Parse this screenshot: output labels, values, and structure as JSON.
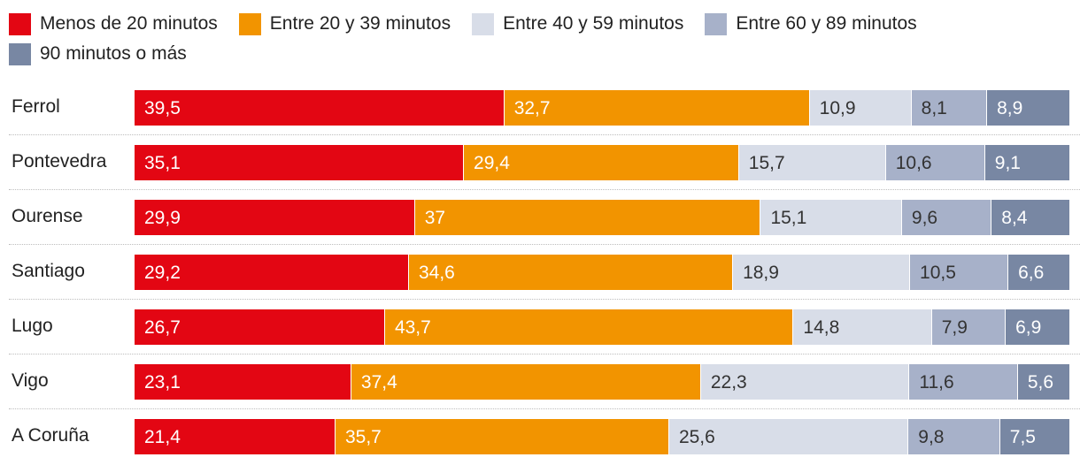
{
  "chart_data": {
    "type": "bar",
    "orientation": "horizontal",
    "stacked": true,
    "legend_position": "top",
    "categories": [
      "Ferrol",
      "Pontevedra",
      "Ourense",
      "Santiago",
      "Lugo",
      "Vigo",
      "A Coruña"
    ],
    "series": [
      {
        "name": "Menos de 20 minutos",
        "color": "#e30613",
        "label_color": "#ffffff",
        "values": [
          "39,5",
          "35,1",
          "29,9",
          "29,2",
          "26,7",
          "23,1",
          "21,4"
        ]
      },
      {
        "name": "Entre 20 y 39 minutos",
        "color": "#f29400",
        "label_color": "#ffffff",
        "values": [
          "32,7",
          "29,4",
          "37",
          "34,6",
          "43,7",
          "37,4",
          "35,7"
        ]
      },
      {
        "name": "Entre 40 y 59 minutos",
        "color": "#d8dde8",
        "label_color": "#333333",
        "values": [
          "10,9",
          "15,7",
          "15,1",
          "18,9",
          "14,8",
          "22,3",
          "25,6"
        ]
      },
      {
        "name": "Entre 60 y 89 minutos",
        "color": "#a7b1c9",
        "label_color": "#333333",
        "values": [
          "8,1",
          "10,6",
          "9,6",
          "10,5",
          "7,9",
          "11,6",
          "9,8"
        ]
      },
      {
        "name": "90 minutos o más",
        "color": "#7887a3",
        "label_color": "#ffffff",
        "values": [
          "8,9",
          "9,1",
          "8,4",
          "6,6",
          "6,9",
          "5,6",
          "7,5"
        ]
      }
    ]
  }
}
